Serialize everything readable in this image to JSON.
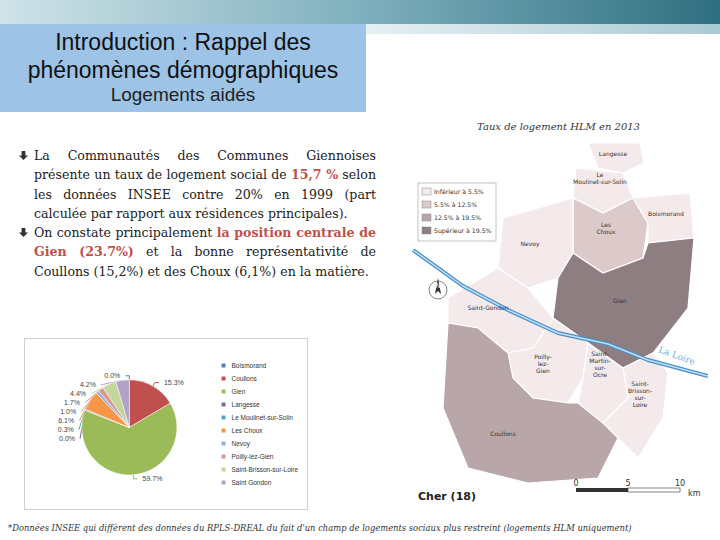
{
  "header": {
    "title": "Introduction : Rappel des phénomènes démographiques",
    "subtitle": "Logements aidés"
  },
  "bullets": [
    [
      {
        "text": "La Communautés des Communes Giennoises présente un taux de logement social de "
      },
      {
        "text": "15,7 %",
        "bold": true
      },
      {
        "text": " selon les données INSEE  contre 20% en 1999 (part calculée par rapport aux résidences principales)."
      }
    ],
    [
      {
        "text": "On constate principalement "
      },
      {
        "text": "la position centrale de Gien (23.7%)",
        "bold": true
      },
      {
        "text": " et la bonne représentativité de Coullons (15,2%) et des Choux (6,1%) en la matière."
      }
    ]
  ],
  "chart_data": {
    "type": "pie",
    "categories": [
      "Boismorand",
      "Coullons",
      "Gien",
      "Langesse",
      "Le Moulinet-sur-Solin",
      "Les Choux",
      "Nevoy",
      "Poilly-lez-Gien",
      "Saint-Brisson-sur-Loire",
      "Saint Gondon"
    ],
    "values": [
      0.0,
      15.3,
      59.7,
      0.0,
      0.3,
      6.1,
      1.0,
      1.7,
      4.4,
      4.2
    ],
    "value_labels": [
      "0.0%",
      "15.3%",
      "59.7%",
      "0.0%",
      "0.3%",
      "6.1%",
      "1.0%",
      "1.7%",
      "4.4%",
      "4.2%"
    ],
    "colors": [
      "#4f81bd",
      "#c0504d",
      "#9bbb59",
      "#8064a2",
      "#4bacc6",
      "#f79646",
      "#95b3d7",
      "#d99694",
      "#c3d69b",
      "#b3a2c7"
    ],
    "legend": "right",
    "data_labels": true
  },
  "map": {
    "title": "Taux de logement HLM en 2013",
    "legend": [
      {
        "label": "Inférieur à 5.5%",
        "color": "#f4eaeb"
      },
      {
        "label": "5.5% à 12.5%",
        "color": "#dccacb"
      },
      {
        "label": "12.5% à 19.5%",
        "color": "#b8a6a9"
      },
      {
        "label": "Supérieur à 19.5%",
        "color": "#8e7e82"
      }
    ],
    "communes": [
      {
        "label": "Langesse",
        "class": 0
      },
      {
        "label": "Le Moulinet-sur-Solin",
        "class": 0
      },
      {
        "label": "Les Choux",
        "class": 1
      },
      {
        "label": "Boismorand",
        "class": 0
      },
      {
        "label": "Nevoy",
        "class": 0
      },
      {
        "label": "Gien",
        "class": 3
      },
      {
        "label": "Saint-Gondon",
        "class": 0
      },
      {
        "label": "Poilly-lez-Gien",
        "class": 0
      },
      {
        "label": "Saint-Martin-sur-Ocre",
        "class": 0
      },
      {
        "label": "Saint-Brisson-sur-Loire",
        "class": 0
      },
      {
        "label": "Coullons",
        "class": 2
      }
    ],
    "river": "La Loire",
    "north": "N",
    "scale": {
      "ticks": [
        0,
        5,
        10
      ],
      "unit": "km"
    },
    "department": "Cher (18)"
  },
  "footnote": "*Données INSEE qui diffèrent des données du RPLS-DREAL du fait d'un champ de logements sociaux plus restreint (logements HLM uniquement)"
}
